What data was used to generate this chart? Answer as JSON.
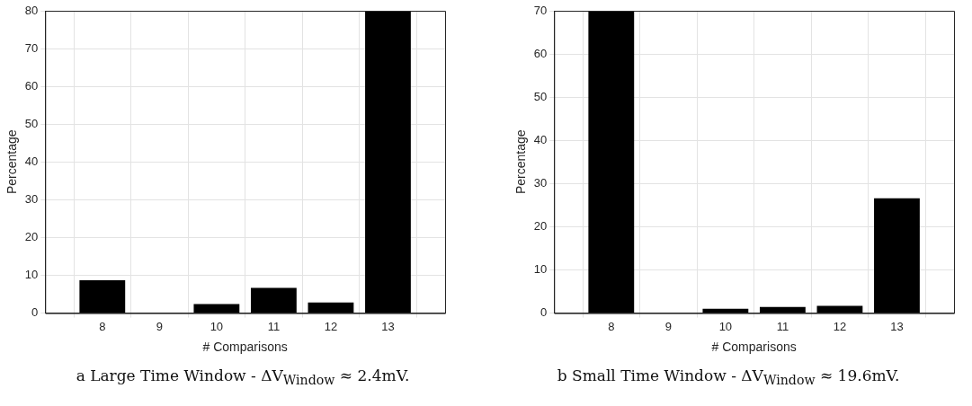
{
  "chart_data": [
    {
      "type": "bar",
      "title": "a Large Time Window - ΔV$_{Window}$ ≈ 2.4mV.",
      "xlabel": "# Comparisons",
      "ylabel": "Percentage",
      "x": [
        8,
        9,
        10,
        11,
        12,
        13
      ],
      "values": [
        8.7,
        0.1,
        2.4,
        6.7,
        2.8,
        80
      ],
      "color": "#000000",
      "xlim": [
        7,
        14
      ],
      "xticks": [
        8,
        9,
        10,
        11,
        12,
        13
      ],
      "ylim": [
        0,
        80
      ],
      "yticks": [
        0,
        10,
        20,
        30,
        40,
        50,
        60,
        70,
        80
      ],
      "grid": true,
      "legend": false
    },
    {
      "type": "bar",
      "title": "b Small Time Window - ΔV$_{Window}$ ≈ 19.6mV.",
      "xlabel": "# Comparisons",
      "ylabel": "Percentage",
      "x": [
        8,
        9,
        10,
        11,
        12,
        13
      ],
      "values": [
        69.8,
        0.1,
        1.0,
        1.4,
        1.7,
        26.6
      ],
      "color": "#000000",
      "xlim": [
        7,
        14
      ],
      "xticks": [
        8,
        9,
        10,
        11,
        12,
        13
      ],
      "ylim": [
        0,
        70
      ],
      "yticks": [
        0,
        10,
        20,
        30,
        40,
        50,
        60,
        70
      ],
      "grid": true,
      "legend": false
    }
  ]
}
